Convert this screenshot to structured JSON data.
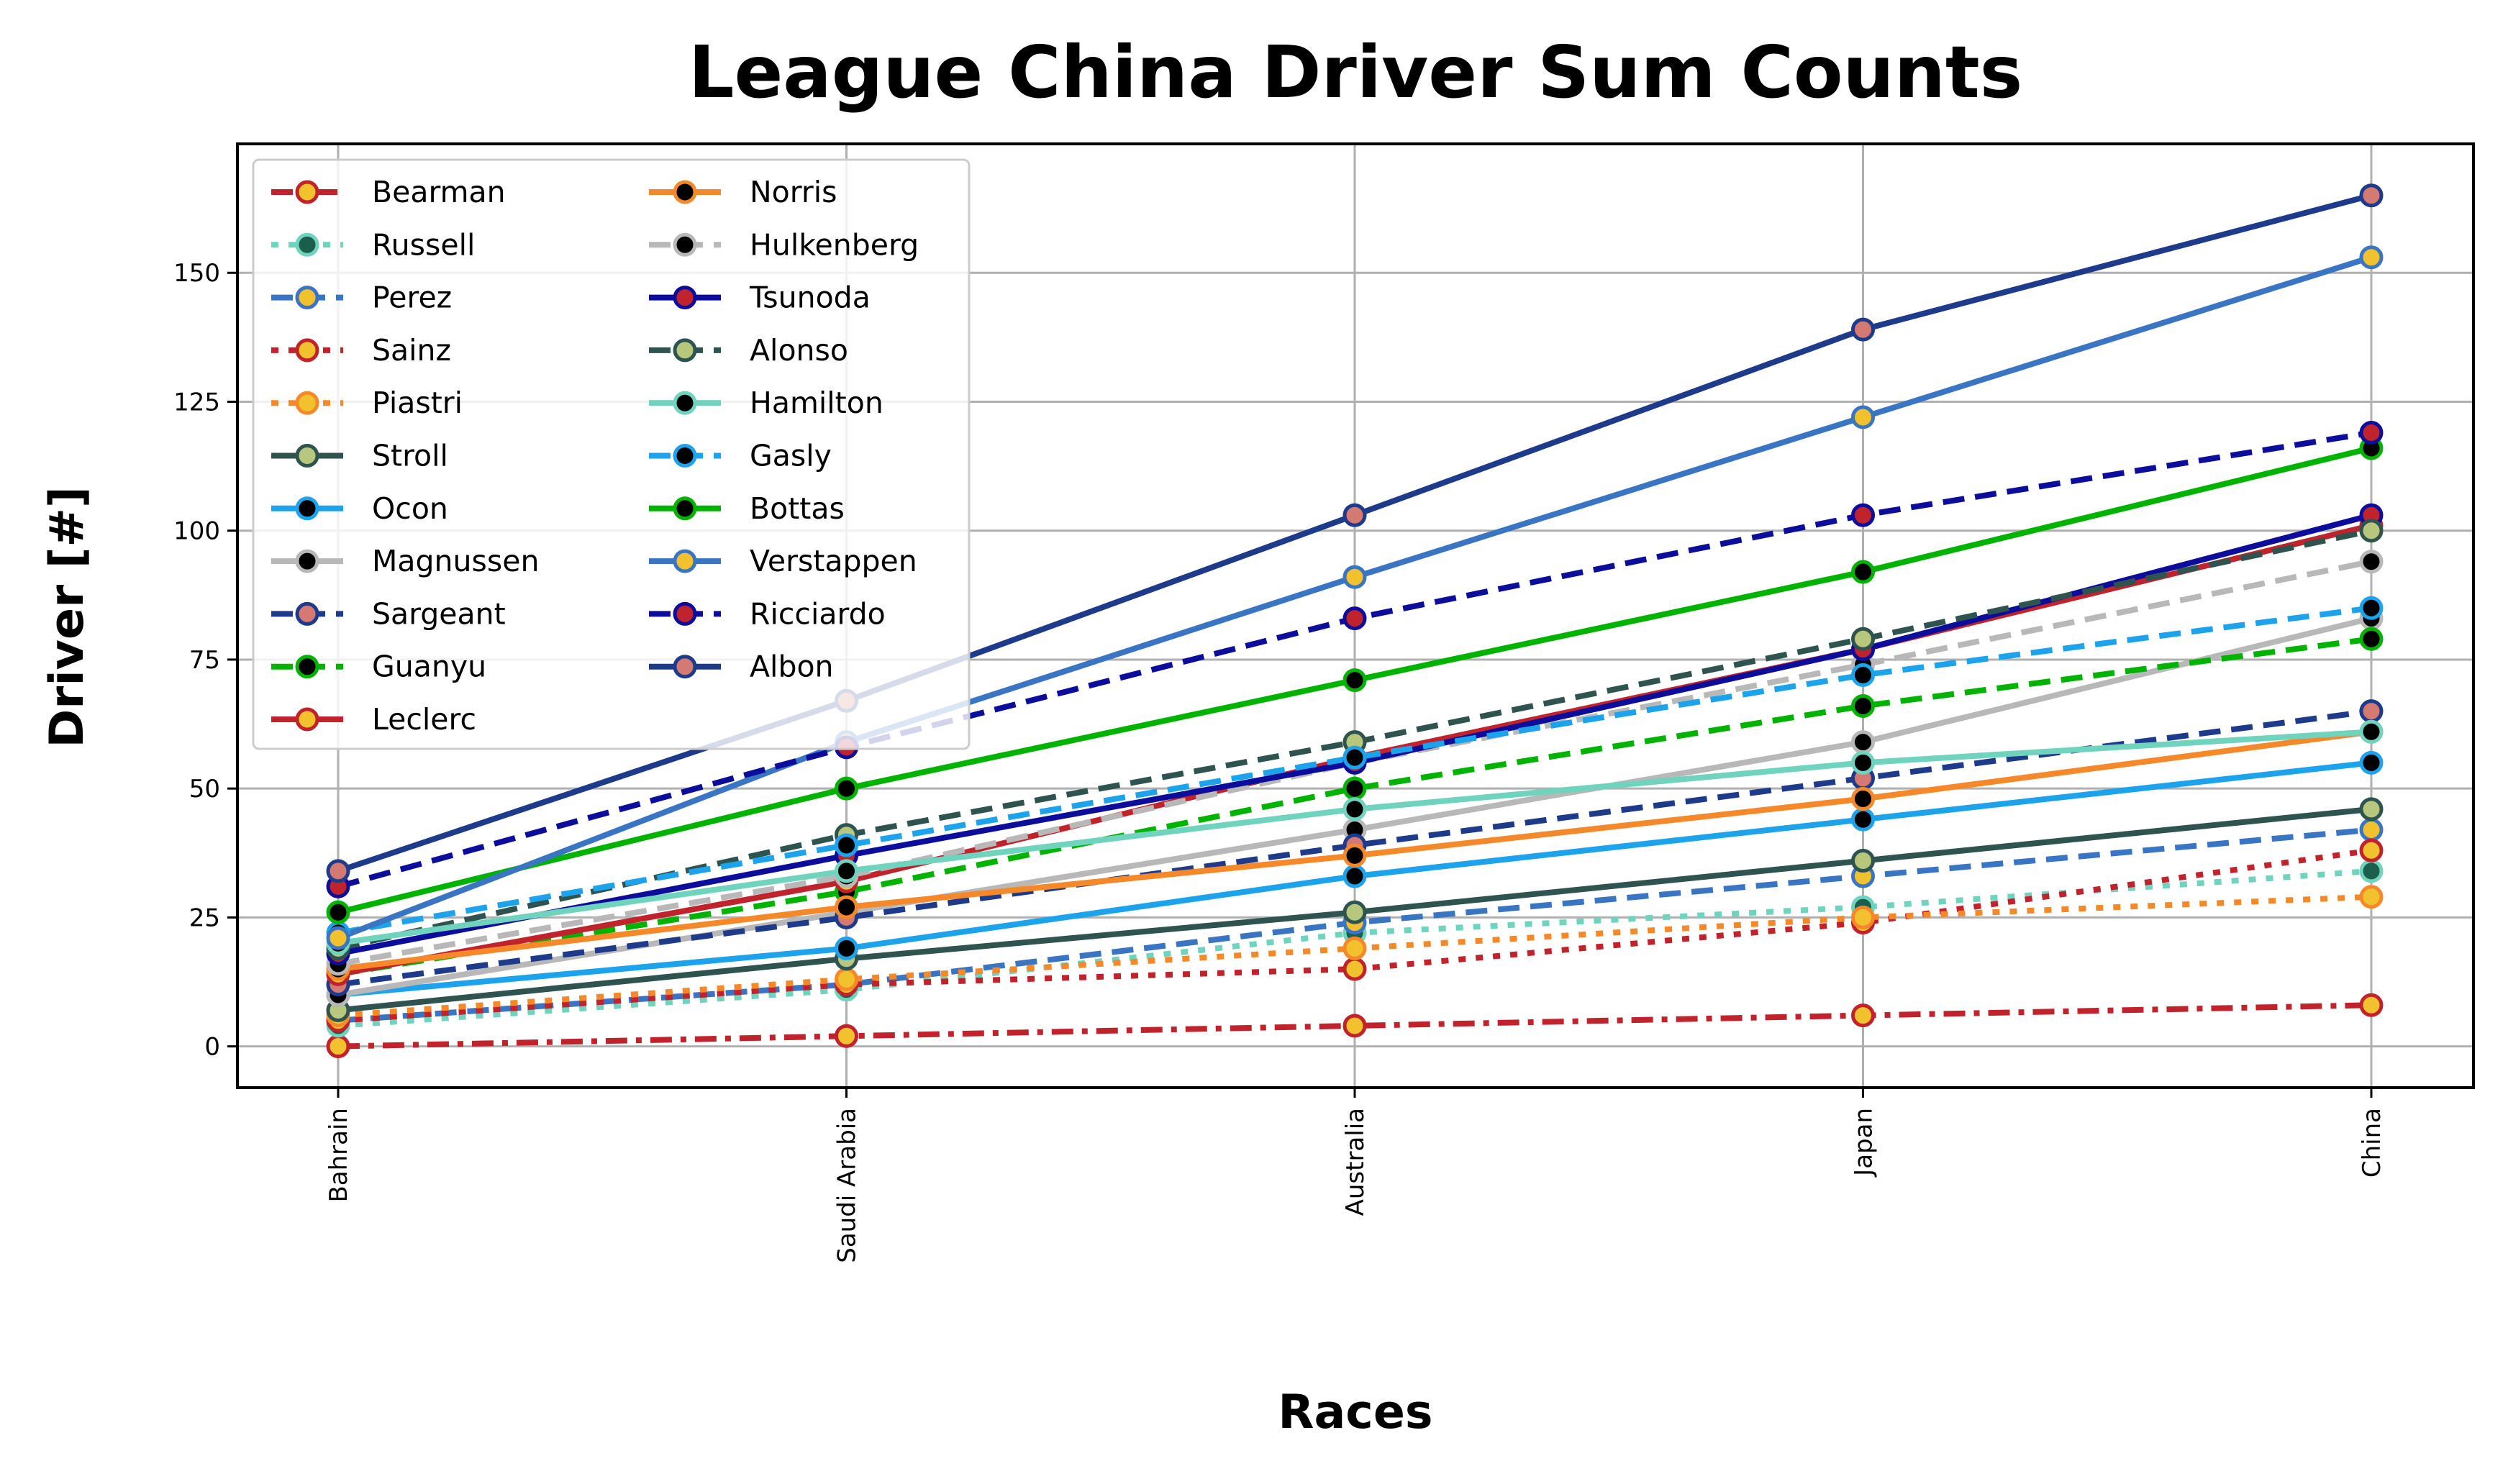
{
  "chart_data": {
    "type": "line",
    "title": "League China Driver Sum Counts",
    "xlabel": "Races",
    "ylabel": "Driver [#]",
    "categories": [
      "Bahrain",
      "Saudi Arabia",
      "Australia",
      "Japan",
      "China"
    ],
    "ylim": [
      -8,
      175
    ],
    "yticks": [
      0,
      25,
      50,
      75,
      100,
      125,
      150
    ],
    "grid": true,
    "legend_position": "top-left",
    "legend_columns": 2,
    "series": [
      {
        "name": "Bearman",
        "values": [
          0,
          2,
          4,
          6,
          8
        ],
        "color": "#c0232c",
        "dash": "dashdot",
        "marker_fill": "#f2c12e",
        "marker_edge": "#c0232c"
      },
      {
        "name": "Russell",
        "values": [
          4,
          11,
          22,
          27,
          34
        ],
        "color": "#6fd3bd",
        "dash": "dotted",
        "marker_fill": "#1b5e4b",
        "marker_edge": "#6fd3bd"
      },
      {
        "name": "Perez",
        "values": [
          5,
          12,
          24,
          33,
          42
        ],
        "color": "#3a75c4",
        "dash": "dashed",
        "marker_fill": "#f2c12e",
        "marker_edge": "#3a75c4"
      },
      {
        "name": "Sainz",
        "values": [
          5,
          12,
          15,
          24,
          38
        ],
        "color": "#c0232c",
        "dash": "dotted",
        "marker_fill": "#f2c12e",
        "marker_edge": "#c0232c"
      },
      {
        "name": "Piastri",
        "values": [
          6,
          13,
          19,
          25,
          29
        ],
        "color": "#f5892a",
        "dash": "dotted",
        "marker_fill": "#f2c12e",
        "marker_edge": "#f5892a"
      },
      {
        "name": "Stroll",
        "values": [
          7,
          17,
          26,
          36,
          46
        ],
        "color": "#2f5450",
        "dash": "solid",
        "marker_fill": "#b7c77e",
        "marker_edge": "#2f5450"
      },
      {
        "name": "Ocon",
        "values": [
          10,
          19,
          33,
          44,
          55
        ],
        "color": "#1ca3ec",
        "dash": "solid",
        "marker_fill": "#000000",
        "marker_edge": "#1ca3ec"
      },
      {
        "name": "Magnussen",
        "values": [
          10,
          26,
          42,
          59,
          83
        ],
        "color": "#b8b8b8",
        "dash": "solid",
        "marker_fill": "#000000",
        "marker_edge": "#b8b8b8"
      },
      {
        "name": "Sargeant",
        "values": [
          12,
          25,
          39,
          52,
          65
        ],
        "color": "#1e3a8a",
        "dash": "dashed",
        "marker_fill": "#d47a72",
        "marker_edge": "#1e3a8a"
      },
      {
        "name": "Guanyu",
        "values": [
          14,
          30,
          50,
          66,
          79
        ],
        "color": "#00b300",
        "dash": "dashed",
        "marker_fill": "#000000",
        "marker_edge": "#00b300"
      },
      {
        "name": "Leclerc",
        "values": [
          14,
          32,
          56,
          77,
          101
        ],
        "color": "#c0232c",
        "dash": "solid",
        "marker_fill": "#f2c12e",
        "marker_edge": "#c0232c"
      },
      {
        "name": "Norris",
        "values": [
          15,
          27,
          37,
          48,
          61
        ],
        "color": "#f5892a",
        "dash": "solid",
        "marker_fill": "#000000",
        "marker_edge": "#f5892a"
      },
      {
        "name": "Hulkenberg",
        "values": [
          16,
          33,
          55,
          74,
          94
        ],
        "color": "#b8b8b8",
        "dash": "dashed",
        "marker_fill": "#000000",
        "marker_edge": "#b8b8b8"
      },
      {
        "name": "Tsunoda",
        "values": [
          18,
          37,
          55,
          77,
          103
        ],
        "color": "#0d0d9c",
        "dash": "solid",
        "marker_fill": "#c0232c",
        "marker_edge": "#0d0d9c"
      },
      {
        "name": "Alonso",
        "values": [
          19,
          41,
          59,
          79,
          100
        ],
        "color": "#2f5450",
        "dash": "dashed",
        "marker_fill": "#b7c77e",
        "marker_edge": "#2f5450"
      },
      {
        "name": "Hamilton",
        "values": [
          20,
          34,
          46,
          55,
          61
        ],
        "color": "#6fd3bd",
        "dash": "solid",
        "marker_fill": "#000000",
        "marker_edge": "#6fd3bd"
      },
      {
        "name": "Gasly",
        "values": [
          22,
          39,
          56,
          72,
          85
        ],
        "color": "#1ca3ec",
        "dash": "dashed",
        "marker_fill": "#000000",
        "marker_edge": "#1ca3ec"
      },
      {
        "name": "Bottas",
        "values": [
          26,
          50,
          71,
          92,
          116
        ],
        "color": "#00b300",
        "dash": "solid",
        "marker_fill": "#000000",
        "marker_edge": "#00b300"
      },
      {
        "name": "Verstappen",
        "values": [
          21,
          59,
          91,
          122,
          153
        ],
        "color": "#3a75c4",
        "dash": "solid",
        "marker_fill": "#f2c12e",
        "marker_edge": "#3a75c4"
      },
      {
        "name": "Ricciardo",
        "values": [
          31,
          58,
          83,
          103,
          119
        ],
        "color": "#0d0d9c",
        "dash": "dashed",
        "marker_fill": "#c0232c",
        "marker_edge": "#0d0d9c"
      },
      {
        "name": "Albon",
        "values": [
          34,
          67,
          103,
          139,
          165
        ],
        "color": "#1e3a8a",
        "dash": "solid",
        "marker_fill": "#d47a72",
        "marker_edge": "#1e3a8a"
      }
    ]
  }
}
